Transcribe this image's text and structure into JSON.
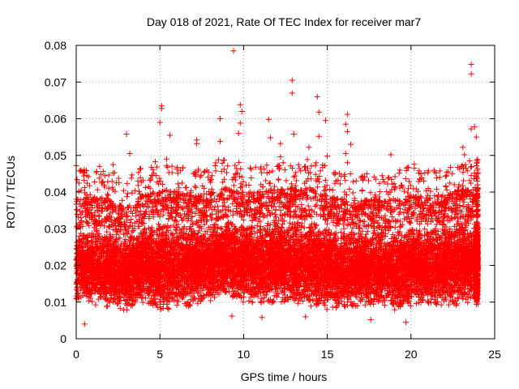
{
  "chart_data": {
    "type": "scatter",
    "title": "Day 018 of 2021, Rate Of TEC Index for receiver mar7",
    "xlabel": "GPS time / hours",
    "ylabel": "ROTI / TECUs",
    "xlim": [
      0,
      25
    ],
    "ylim": [
      0,
      0.08
    ],
    "xticks": [
      0,
      5,
      10,
      15,
      20,
      25
    ],
    "yticks": [
      0,
      0.01,
      0.02,
      0.03,
      0.04,
      0.05,
      0.06,
      0.07,
      0.08
    ],
    "xtick_labels": [
      "0",
      "5",
      "10",
      "15",
      "20",
      "25"
    ],
    "ytick_labels": [
      "0",
      "0.01",
      "0.02",
      "0.03",
      "0.04",
      "0.05",
      "0.06",
      "0.07",
      "0.08"
    ],
    "grid": true,
    "marker": "+",
    "color": "#ff0000",
    "series": [
      {
        "points": [
          [
            9.4,
            0.0785
          ],
          [
            23.6,
            0.0748
          ],
          [
            23.6,
            0.0722
          ],
          [
            12.9,
            0.0705
          ],
          [
            12.9,
            0.067
          ],
          [
            14.4,
            0.066
          ],
          [
            5.1,
            0.0635
          ],
          [
            5.1,
            0.0628
          ],
          [
            9.8,
            0.0638
          ],
          [
            9.9,
            0.062
          ],
          [
            16.2,
            0.0612
          ],
          [
            14.5,
            0.0618
          ],
          [
            8.6,
            0.06
          ],
          [
            11.5,
            0.0598
          ],
          [
            14.9,
            0.0595
          ],
          [
            5.0,
            0.059
          ],
          [
            9.8,
            0.0588
          ],
          [
            16.1,
            0.0585
          ],
          [
            23.8,
            0.0578
          ],
          [
            23.6,
            0.0572
          ],
          [
            3.0,
            0.0558
          ],
          [
            13.0,
            0.0558
          ],
          [
            16.2,
            0.0565
          ],
          [
            9.7,
            0.056
          ],
          [
            5.6,
            0.0555
          ],
          [
            14.5,
            0.0552
          ],
          [
            23.9,
            0.055
          ],
          [
            11.6,
            0.0548
          ],
          [
            7.2,
            0.0542
          ],
          [
            8.6,
            0.0538
          ],
          [
            12.2,
            0.0532
          ],
          [
            7.2,
            0.0532
          ],
          [
            16.4,
            0.053
          ],
          [
            13.9,
            0.0522
          ],
          [
            23.1,
            0.0522
          ],
          [
            3.2,
            0.0505
          ],
          [
            18.8,
            0.0502
          ],
          [
            23.2,
            0.0502
          ],
          [
            12.2,
            0.0496
          ],
          [
            15.0,
            0.0498
          ],
          [
            16.1,
            0.0505
          ],
          [
            5.4,
            0.049
          ],
          [
            8.5,
            0.0488
          ],
          [
            23.5,
            0.0485
          ],
          [
            16.2,
            0.048
          ],
          [
            2.2,
            0.0475
          ],
          [
            1.4,
            0.047
          ],
          [
            20.2,
            0.0476
          ],
          [
            0.0,
            0.0472
          ],
          [
            20.2,
            0.0465
          ],
          [
            7.3,
            0.0462
          ],
          [
            0.4,
            0.0455
          ],
          [
            2.2,
            0.0452
          ],
          [
            11.4,
            0.0452
          ],
          [
            14.3,
            0.0448
          ],
          [
            21.5,
            0.0452
          ],
          [
            23.6,
            0.0445
          ],
          [
            18.6,
            0.0422
          ],
          [
            3.7,
            0.0418
          ],
          [
            0.3,
            0.0405
          ],
          [
            6.1,
            0.04
          ],
          [
            19.6,
            0.0402
          ],
          [
            0.1,
            0.038
          ],
          [
            0.5,
            0.004
          ],
          [
            19.7,
            0.0045
          ],
          [
            17.6,
            0.0052
          ],
          [
            11.1,
            0.0058
          ],
          [
            9.3,
            0.0062
          ],
          [
            13.7,
            0.006
          ]
        ],
        "band": {
          "segments": [
            [
              0.0,
              0.0095,
              0.03
            ],
            [
              1.0,
              0.0085,
              0.031
            ],
            [
              2.0,
              0.008,
              0.03
            ],
            [
              3.0,
              0.0075,
              0.028
            ],
            [
              4.0,
              0.0095,
              0.031
            ],
            [
              5.0,
              0.0065,
              0.033
            ],
            [
              6.0,
              0.0075,
              0.032
            ],
            [
              7.0,
              0.0085,
              0.031
            ],
            [
              8.0,
              0.01,
              0.032
            ],
            [
              9.0,
              0.011,
              0.033
            ],
            [
              10.0,
              0.0095,
              0.032
            ],
            [
              11.0,
              0.0085,
              0.032
            ],
            [
              12.0,
              0.0095,
              0.033
            ],
            [
              13.0,
              0.0085,
              0.033
            ],
            [
              14.0,
              0.0085,
              0.033
            ],
            [
              15.0,
              0.0075,
              0.031
            ],
            [
              16.0,
              0.0075,
              0.03
            ],
            [
              17.0,
              0.0085,
              0.03
            ],
            [
              18.0,
              0.0085,
              0.03
            ],
            [
              19.0,
              0.0075,
              0.03
            ],
            [
              20.0,
              0.0085,
              0.031
            ],
            [
              21.0,
              0.0085,
              0.031
            ],
            [
              22.0,
              0.0085,
              0.031
            ],
            [
              23.0,
              0.0085,
              0.033
            ],
            [
              23.9,
              0.009,
              0.033
            ]
          ]
        }
      }
    ]
  }
}
